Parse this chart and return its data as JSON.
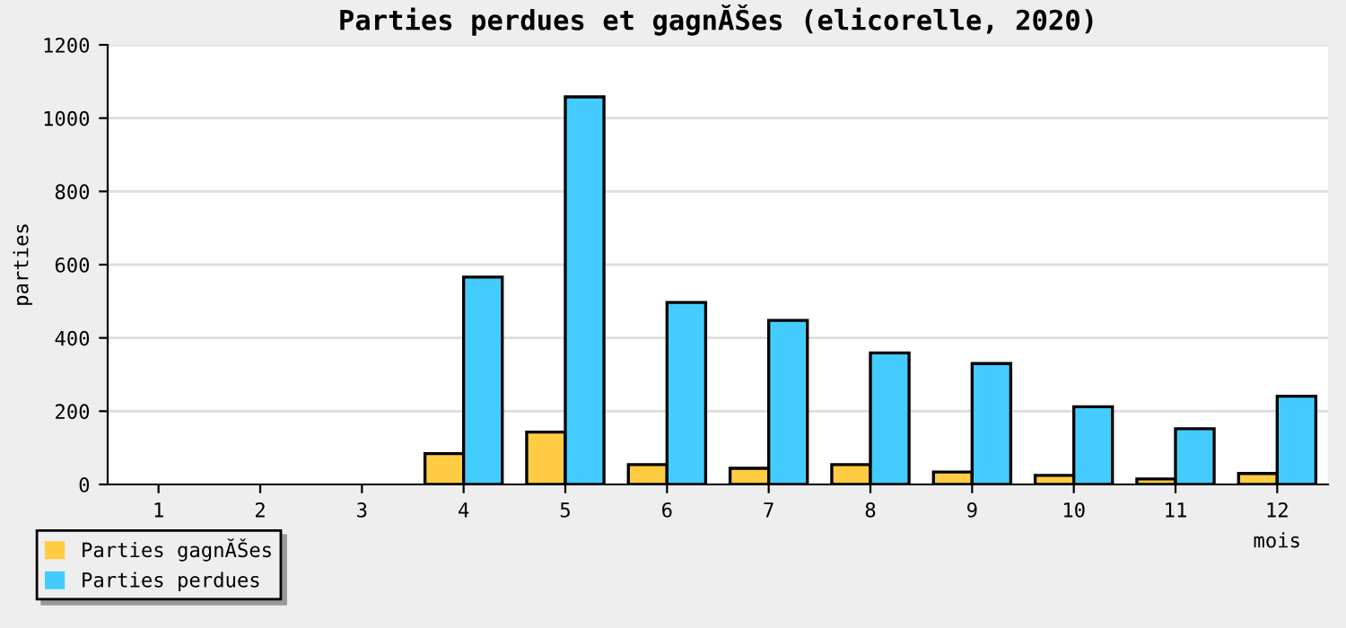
{
  "chart_data": {
    "type": "bar",
    "title": "Parties perdues et gagnĂŠes (elicorelle, 2020)",
    "xlabel": "mois",
    "ylabel": "parties",
    "categories": [
      "1",
      "2",
      "3",
      "4",
      "5",
      "6",
      "7",
      "8",
      "9",
      "10",
      "11",
      "12"
    ],
    "series": [
      {
        "name": "Parties gagnĂŠes",
        "color": "#ffcc44",
        "values": [
          0,
          0,
          0,
          84,
          143,
          54,
          44,
          54,
          34,
          25,
          15,
          30
        ]
      },
      {
        "name": "Parties perdues",
        "color": "#44ccff",
        "values": [
          0,
          0,
          0,
          566,
          1058,
          497,
          448,
          359,
          330,
          212,
          152,
          241
        ]
      }
    ],
    "ylim": [
      0,
      1200
    ],
    "yticks": [
      0,
      200,
      400,
      600,
      800,
      1000,
      1200
    ],
    "grid": "y",
    "legend": "bottom left"
  }
}
